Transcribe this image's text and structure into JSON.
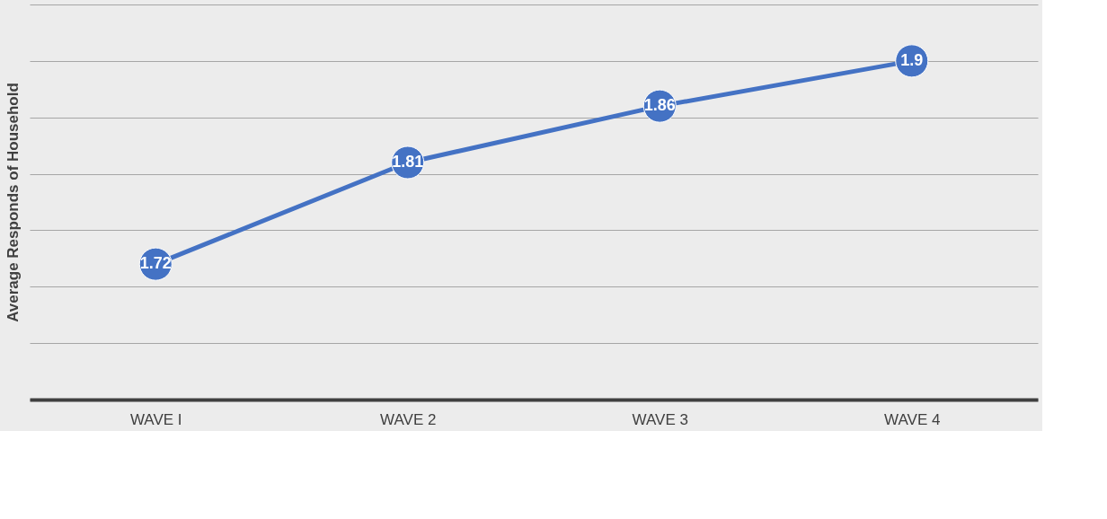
{
  "chart_data": {
    "type": "line",
    "ylabel": "Average Responds of Household",
    "categories": [
      "WAVE I",
      "WAVE 2",
      "WAVE 3",
      "WAVE 4"
    ],
    "series": [
      {
        "color": "#4472c4",
        "values": [
          1.72,
          1.81,
          1.86,
          1.9
        ]
      }
    ],
    "ylim": [
      1.6,
      1.95
    ],
    "yticks": [
      {
        "value": 1.6,
        "label": null
      },
      {
        "value": 1.65,
        "label": null
      },
      {
        "value": 1.7,
        "label": null
      },
      {
        "value": 1.75,
        "label": null
      },
      {
        "value": 1.8,
        "label": null
      },
      {
        "value": 1.85,
        "label": null
      },
      {
        "value": 1.9,
        "label": null
      },
      {
        "value": 1.95,
        "label": null
      }
    ],
    "tick_labels": "x",
    "grid": "y",
    "data_labels": true,
    "marker": "circle",
    "line_style": "solid"
  }
}
